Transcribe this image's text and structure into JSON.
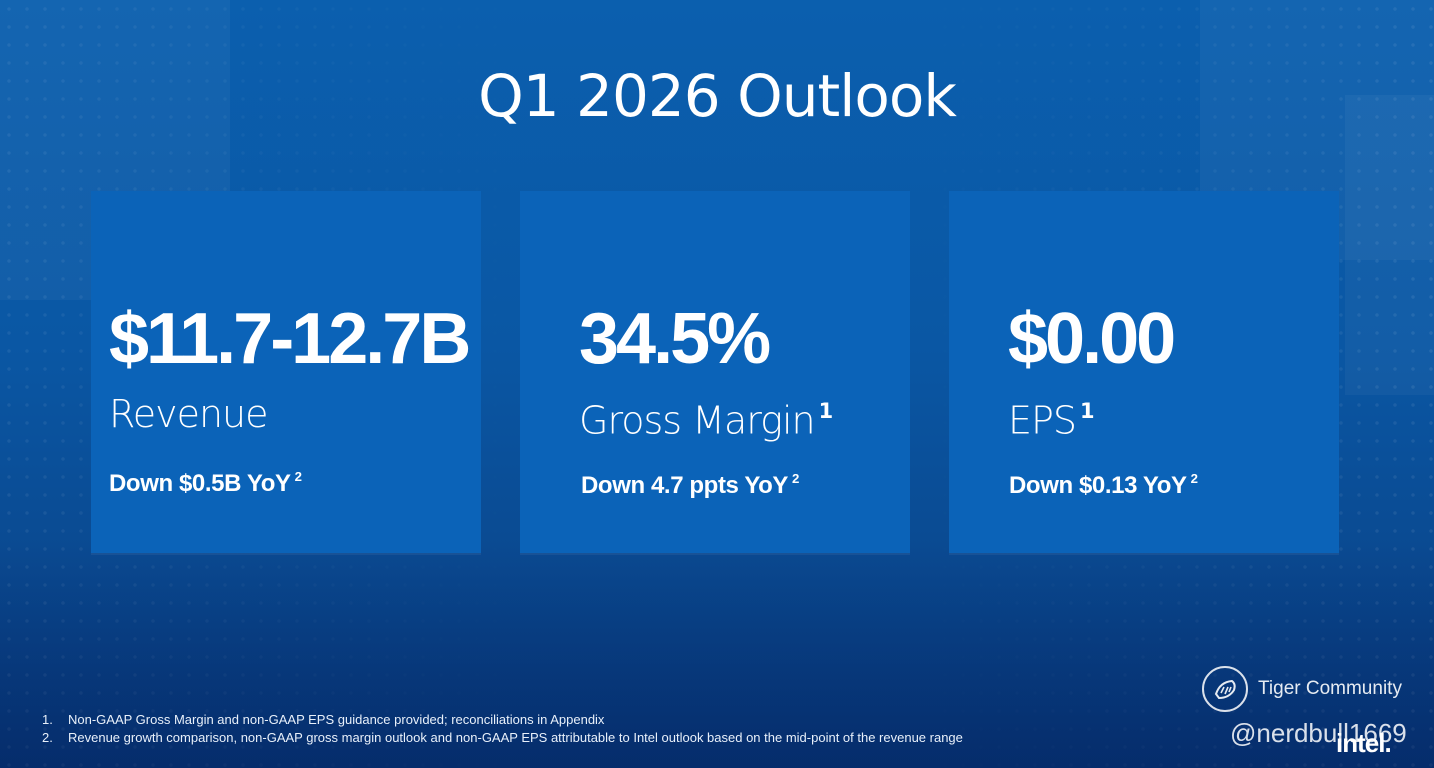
{
  "title": "Q1 2026 Outlook",
  "cards": [
    {
      "value": "$11.7-12.7B",
      "metric": "Revenue",
      "metric_note": "",
      "change": "Down $0.5B YoY",
      "change_note": "2"
    },
    {
      "value": "34.5%",
      "metric": "Gross Margin",
      "metric_note": "1",
      "change": "Down 4.7 ppts YoY",
      "change_note": "2"
    },
    {
      "value": "$0.00",
      "metric": "EPS",
      "metric_note": "1",
      "change": "Down $0.13 YoY",
      "change_note": "2"
    }
  ],
  "footnotes": [
    {
      "num": "1.",
      "text": "Non-GAAP Gross Margin and non-GAAP EPS guidance provided; reconciliations in Appendix"
    },
    {
      "num": "2.",
      "text": "Revenue growth comparison, non-GAAP gross margin outlook and non-GAAP EPS attributable to Intel outlook based on the mid-point of the revenue range"
    }
  ],
  "watermark": {
    "label": "Tiger Community",
    "handle": "@nerdbull1669"
  },
  "brand": "intel.",
  "colors": {
    "card": "#0b63b8",
    "background": "#0a57a4",
    "text": "#ffffff"
  }
}
